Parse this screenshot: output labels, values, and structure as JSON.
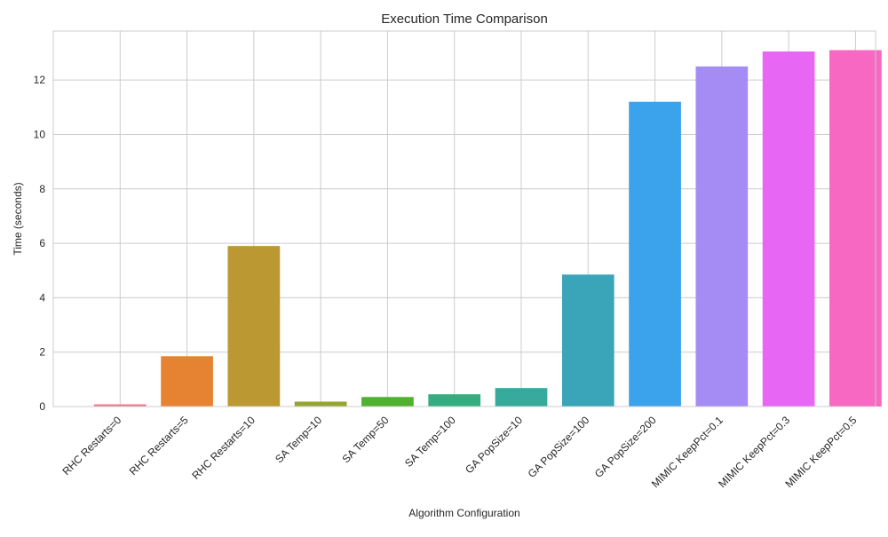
{
  "chart_data": {
    "type": "bar",
    "title": "Execution Time Comparison",
    "xlabel": "Algorithm Configuration",
    "ylabel": "Time (seconds)",
    "categories": [
      "RHC Restarts=0",
      "RHC Restarts=5",
      "RHC Restarts=10",
      "SA Temp=10",
      "SA Temp=50",
      "SA Temp=100",
      "GA PopSize=10",
      "GA PopSize=100",
      "GA PopSize=200",
      "MIMIC KeepPct=0.1",
      "MIMIC KeepPct=0.3",
      "MIMIC KeepPct=0.5"
    ],
    "values": [
      0.08,
      1.85,
      5.9,
      0.18,
      0.35,
      0.45,
      0.68,
      4.85,
      11.2,
      12.5,
      13.05,
      13.1
    ],
    "colors": [
      "#f77189",
      "#e68332",
      "#bb9832",
      "#97a431",
      "#50b131",
      "#36ad80",
      "#38aa9d",
      "#3aa5b8",
      "#3ba3ec",
      "#a48cf4",
      "#e866f4",
      "#f668c2"
    ],
    "ylim": [
      0,
      13.8
    ],
    "yticks": [
      0,
      2,
      4,
      6,
      8,
      10,
      12
    ],
    "grid": true,
    "legend": "none"
  }
}
